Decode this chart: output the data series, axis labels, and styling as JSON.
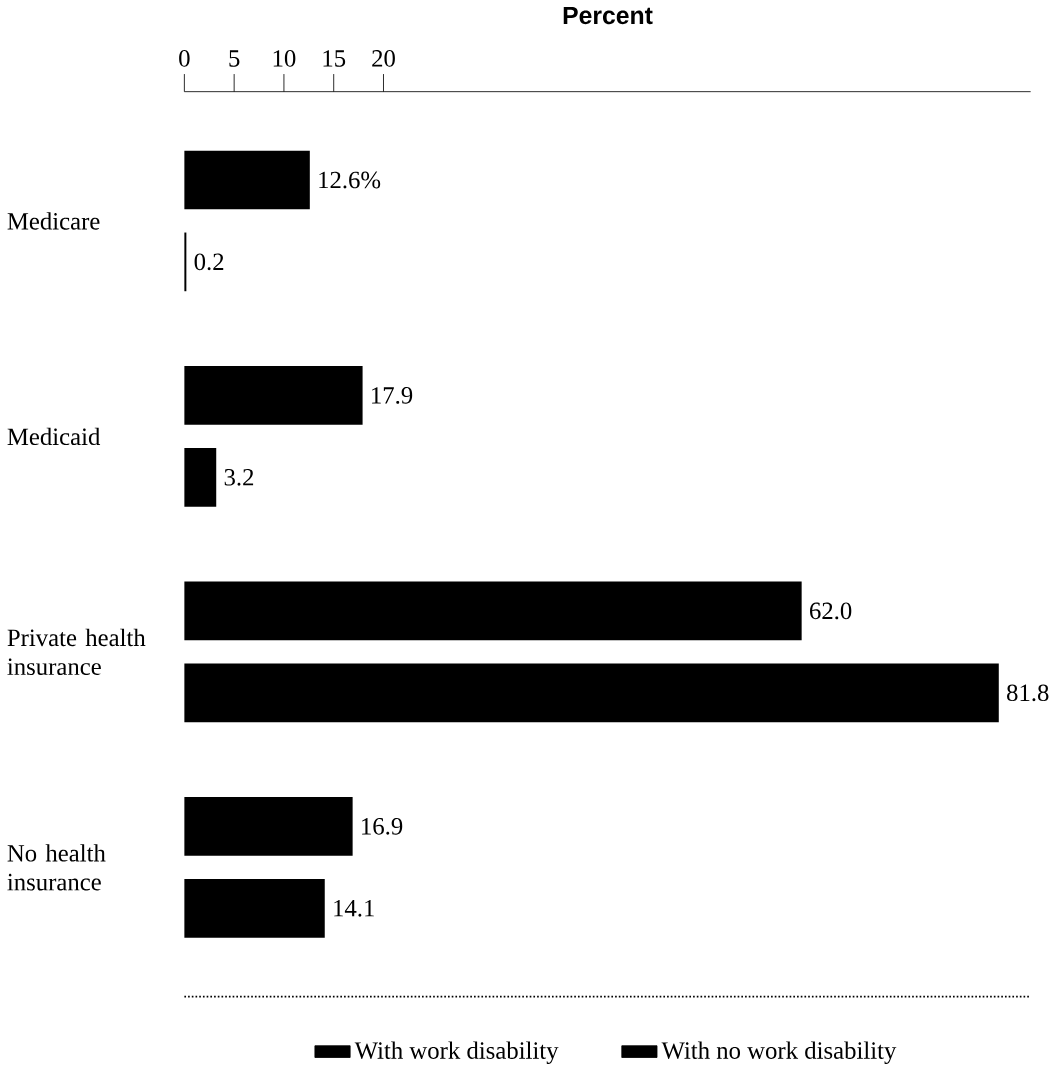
{
  "chart_data": {
    "type": "bar",
    "orientation": "horizontal",
    "xlabel": "Percent",
    "categories": [
      "Medicare",
      "Medicaid",
      "Private health insurance",
      "No health insurance"
    ],
    "series": [
      {
        "name": "With work disability",
        "color": "#000000",
        "values": [
          12.6,
          17.9,
          62.0,
          16.9
        ],
        "value_labels": [
          "12.6%",
          "17.9",
          "62.0",
          "16.9"
        ]
      },
      {
        "name": "With no work disability",
        "color": "#000000",
        "values": [
          0.2,
          3.2,
          81.8,
          14.1
        ],
        "value_labels": [
          "0.2",
          "3.2",
          "81.8",
          "14.1"
        ]
      }
    ],
    "xlim": [
      0,
      85
    ],
    "xticks": [
      0,
      5,
      10,
      15,
      20
    ],
    "legend": "bottom",
    "grid": false
  }
}
